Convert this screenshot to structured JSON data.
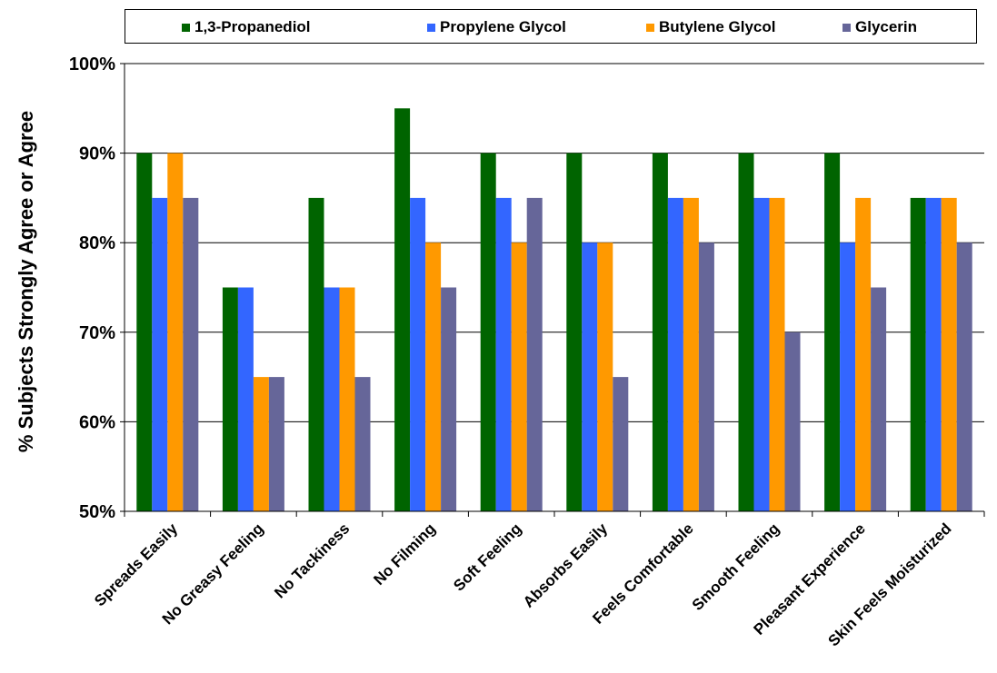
{
  "chart_data": {
    "type": "bar",
    "title": "",
    "xlabel": "",
    "ylabel": "% Subjects Strongly Agree or Agree",
    "ylim": [
      50,
      100
    ],
    "y_ticks": [
      "50%",
      "60%",
      "70%",
      "80%",
      "90%",
      "100%"
    ],
    "y_tick_values": [
      50,
      60,
      70,
      80,
      90,
      100
    ],
    "grid": true,
    "legend_position": "top",
    "categories": [
      "Spreads Easily",
      "No Greasy Feeling",
      "No Tackiness",
      "No Filming",
      "Soft Feeling",
      "Absorbs Easily",
      "Feels Comfortable",
      "Smooth Feeling",
      "Pleasant Experience",
      "Skin Feels Moisturized"
    ],
    "series": [
      {
        "name": "1,3-Propanediol",
        "color": "#006400",
        "values": [
          90,
          75,
          85,
          95,
          90,
          90,
          90,
          90,
          90,
          85
        ]
      },
      {
        "name": "Propylene Glycol",
        "color": "#3366FF",
        "values": [
          85,
          75,
          75,
          85,
          85,
          80,
          85,
          85,
          80,
          85
        ]
      },
      {
        "name": "Butylene Glycol",
        "color": "#FF9900",
        "values": [
          90,
          65,
          75,
          80,
          80,
          80,
          85,
          85,
          85,
          85
        ]
      },
      {
        "name": "Glycerin",
        "color": "#666699",
        "values": [
          85,
          65,
          65,
          75,
          85,
          65,
          80,
          70,
          75,
          80
        ]
      }
    ]
  }
}
